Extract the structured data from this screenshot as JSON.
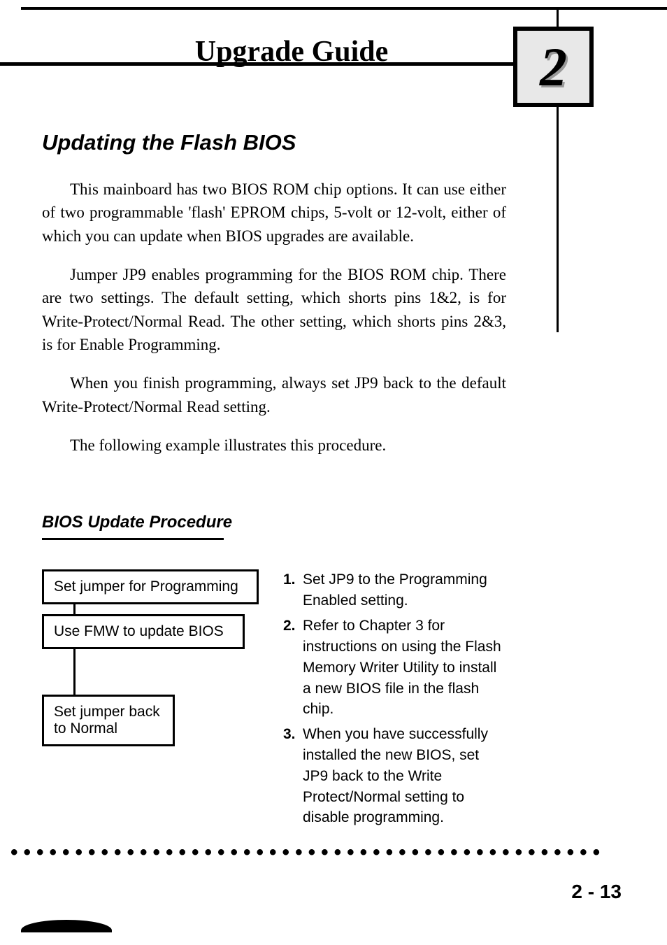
{
  "header": {
    "title": "Upgrade Guide",
    "chapter_number": "2"
  },
  "section": {
    "title": "Updating the Flash BIOS",
    "paragraphs": [
      "This mainboard has two BIOS ROM chip options. It can use either of two programmable 'flash' EPROM chips, 5-volt or 12-volt, either of which you can update when BIOS upgrades are available.",
      "Jumper JP9 enables programming for the BIOS ROM chip. There are two settings. The default setting, which shorts pins 1&2, is for Write-Protect/Normal Read. The other setting, which shorts pins 2&3, is for Enable Programming.",
      "When you finish programming, always set JP9 back to the default Write-Protect/Normal Read setting.",
      "The following example illustrates this procedure."
    ]
  },
  "subsection": {
    "title": "BIOS Update Procedure"
  },
  "flowchart": {
    "boxes": [
      "Set jumper for Programming",
      "Use FMW to update BIOS",
      "Set jumper back to Normal"
    ]
  },
  "steps": [
    {
      "num": "1.",
      "text": "Set JP9 to the Programming Enabled setting."
    },
    {
      "num": "2.",
      "text": "Refer to Chapter 3 for instructions on using the Flash Memory Writer Utility to install a new BIOS file in the flash chip."
    },
    {
      "num": "3.",
      "text": "When you have successfully installed the new BIOS, set JP9 back to the Write Protect/Normal setting to disable programming."
    }
  ],
  "footer": {
    "page_number": "2 - 13",
    "dots": "••••••••••••••••••••••••••••••••••••••••••••••"
  },
  "colors": {
    "text": "#000000",
    "background": "#ffffff",
    "badge_bg": "#e8e8e8"
  },
  "typography": {
    "body_font": "Palatino",
    "sans_font": "Arial/Helvetica",
    "header_size_pt": 32,
    "section_title_pt": 24,
    "body_pt": 17,
    "subsection_pt": 18
  }
}
